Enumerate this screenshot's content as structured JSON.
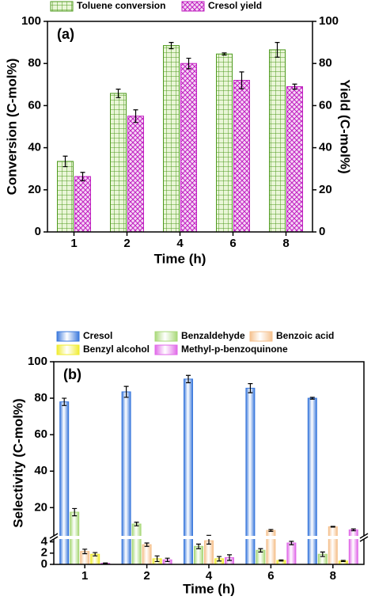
{
  "chart_data": [
    {
      "type": "bar",
      "annotation": "(a)",
      "xlabel": "Time (h)",
      "ylabel": "Conversion (C-mol%)",
      "y2label": "Yield (C-mol%)",
      "categories": [
        "1",
        "2",
        "4",
        "6",
        "8"
      ],
      "series": [
        {
          "name": "Toluene conversion",
          "color": "#4e9a1e",
          "fill": "#eaf6d8",
          "hatch": "grid",
          "values": [
            33.5,
            65.8,
            88.5,
            84.5,
            86.5
          ],
          "errors": [
            2.5,
            2,
            1.5,
            0.5,
            3.5
          ]
        },
        {
          "name": "Cresol yield",
          "color": "#c020c0",
          "fill": "#f6d8f6",
          "hatch": "cross",
          "axis": "y2",
          "values": [
            26.3,
            55,
            80,
            72,
            69
          ],
          "errors": [
            2,
            3,
            2.5,
            4,
            1.2
          ]
        }
      ],
      "ylim": [
        0,
        100
      ],
      "yticks": [
        0,
        20,
        40,
        60,
        80,
        100
      ],
      "y2lim": [
        0,
        100
      ],
      "y2ticks": [
        0,
        20,
        40,
        60,
        80,
        100
      ]
    },
    {
      "type": "broken-bar",
      "annotation": "(b)",
      "xlabel": "Time (h)",
      "ylabel": "Selectivity (C-mol%)",
      "categories": [
        "1",
        "2",
        "4",
        "6",
        "8"
      ],
      "series": [
        {
          "name": "Cresol",
          "color": "#3a78dc",
          "values": [
            78,
            83.5,
            90.5,
            85.5,
            80
          ],
          "errors": [
            2,
            3,
            2,
            2.5,
            0.5
          ]
        },
        {
          "name": "Benzaldehyde",
          "color": "#a8d878",
          "values": [
            17.5,
            11,
            3.2,
            2.5,
            1.8
          ],
          "errors": [
            2,
            1,
            0.4,
            0.3,
            0.4
          ]
        },
        {
          "name": "Benzoic acid",
          "color": "#f5c08c",
          "values": [
            2.3,
            3.5,
            4.2,
            7.5,
            9.5
          ],
          "errors": [
            0.4,
            0.3,
            0.6,
            0.5,
            0.2
          ]
        },
        {
          "name": "Benzyl alcohol",
          "color": "#f0ec30",
          "values": [
            1.8,
            1,
            1,
            0.7,
            0.6
          ],
          "errors": [
            0.3,
            0.5,
            0.4,
            0.1,
            0.1
          ]
        },
        {
          "name": "Methyl-p-benzoquinone",
          "color": "#e068e8",
          "values": [
            0.2,
            0.8,
            1.2,
            3.8,
            7.8
          ],
          "errors": [
            0.05,
            0.3,
            0.5,
            0.3,
            0.5
          ]
        }
      ],
      "ylim_lower": [
        0,
        4.5
      ],
      "ylim_upper": [
        4.5,
        100
      ],
      "yticks": [
        0,
        2,
        4,
        20,
        40,
        60,
        80,
        100
      ]
    }
  ]
}
